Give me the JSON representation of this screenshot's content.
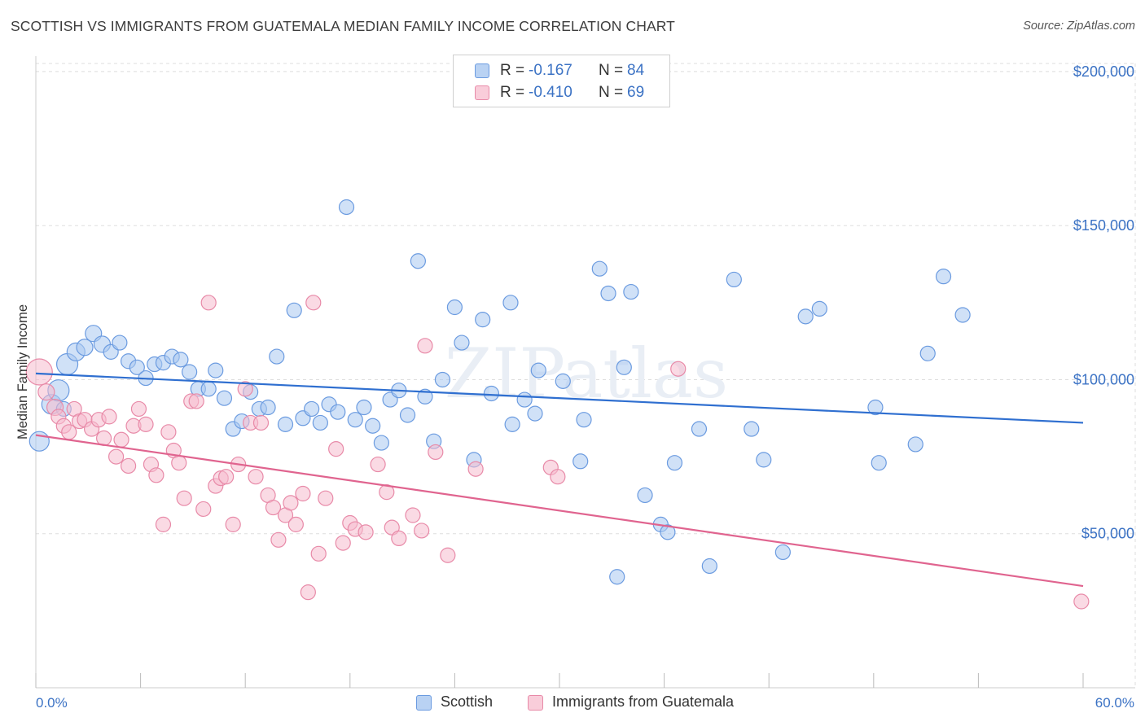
{
  "header": {
    "title": "SCOTTISH VS IMMIGRANTS FROM GUATEMALA MEDIAN FAMILY INCOME CORRELATION CHART",
    "source": "Source: ZipAtlas.com"
  },
  "legend_top": {
    "rows": [
      {
        "r_label": "R =",
        "r_value": "-0.167",
        "n_label": "N =",
        "n_value": "84"
      },
      {
        "r_label": "R =",
        "r_value": "-0.410",
        "n_label": "N =",
        "n_value": "69"
      }
    ]
  },
  "legend_bottom": {
    "items": [
      {
        "label": "Scottish"
      },
      {
        "label": "Immigrants from Guatemala"
      }
    ]
  },
  "colors": {
    "blue_fill": "#a9c8f0",
    "blue_stroke": "#6b9be0",
    "blue_line": "#2f6fd0",
    "pink_fill": "#f6bccd",
    "pink_stroke": "#e88aa8",
    "pink_line": "#e0648f",
    "axis_text": "#3b72c4",
    "grid": "#dddddd"
  },
  "chart_data": {
    "type": "scatter",
    "title": "SCOTTISH VS IMMIGRANTS FROM GUATEMALA MEDIAN FAMILY INCOME CORRELATION CHART",
    "xlabel": "",
    "ylabel": "Median Family Income",
    "xlim": [
      0,
      60
    ],
    "ylim": [
      0,
      205000
    ],
    "x_tick_labels": [
      "0.0%",
      "60.0%"
    ],
    "y_ticks": [
      50000,
      100000,
      150000,
      200000
    ],
    "y_tick_labels": [
      "$50,000",
      "$100,000",
      "$150,000",
      "$200,000"
    ],
    "grid": true,
    "legend_position": "bottom",
    "watermark": "ZIPatlas",
    "series": [
      {
        "name": "Scottish",
        "color": "#a9c8f0",
        "trend": {
          "x": [
            0,
            60
          ],
          "y": [
            102000,
            86000
          ]
        },
        "points": [
          [
            0.2,
            80000,
            12
          ],
          [
            0.9,
            92000,
            12
          ],
          [
            1.3,
            96500,
            13
          ],
          [
            1.8,
            105000,
            13
          ],
          [
            2.3,
            109000,
            11
          ],
          [
            2.8,
            110500,
            10
          ],
          [
            3.3,
            115000,
            10
          ],
          [
            3.8,
            111500,
            10
          ],
          [
            4.3,
            109000,
            9
          ],
          [
            4.8,
            112000,
            9
          ],
          [
            5.3,
            106000,
            9
          ],
          [
            5.8,
            104000,
            9
          ],
          [
            6.3,
            100500,
            9
          ],
          [
            6.8,
            105000,
            9
          ],
          [
            7.3,
            105500,
            9
          ],
          [
            7.8,
            107500,
            9
          ],
          [
            8.3,
            106500,
            9
          ],
          [
            8.8,
            102500,
            9
          ],
          [
            9.3,
            97000,
            9
          ],
          [
            9.9,
            97000,
            9
          ],
          [
            10.3,
            103000,
            9
          ],
          [
            10.8,
            94000,
            9
          ],
          [
            11.3,
            84000,
            9
          ],
          [
            11.8,
            86500,
            9
          ],
          [
            12.3,
            96000,
            9
          ],
          [
            12.8,
            90500,
            9
          ],
          [
            13.3,
            91000,
            9
          ],
          [
            13.8,
            107500,
            9
          ],
          [
            14.3,
            85500,
            9
          ],
          [
            14.8,
            122500,
            9
          ],
          [
            15.3,
            87500,
            9
          ],
          [
            15.8,
            90500,
            9
          ],
          [
            16.3,
            86000,
            9
          ],
          [
            16.8,
            92000,
            9
          ],
          [
            17.3,
            89500,
            9
          ],
          [
            17.8,
            156000,
            9
          ],
          [
            18.3,
            87000,
            9
          ],
          [
            18.8,
            91000,
            9
          ],
          [
            19.3,
            85000,
            9
          ],
          [
            19.8,
            79500,
            9
          ],
          [
            20.3,
            93500,
            9
          ],
          [
            20.8,
            96500,
            9
          ],
          [
            21.3,
            88500,
            9
          ],
          [
            21.9,
            138500,
            9
          ],
          [
            22.3,
            94500,
            9
          ],
          [
            22.8,
            80000,
            9
          ],
          [
            23.3,
            100000,
            9
          ],
          [
            24.0,
            123500,
            9
          ],
          [
            24.4,
            112000,
            9
          ],
          [
            25.1,
            74000,
            9
          ],
          [
            25.6,
            119500,
            9
          ],
          [
            26.1,
            95500,
            9
          ],
          [
            27.2,
            125000,
            9
          ],
          [
            27.3,
            85500,
            9
          ],
          [
            28.0,
            93500,
            9
          ],
          [
            28.6,
            89000,
            9
          ],
          [
            28.8,
            103000,
            9
          ],
          [
            30.2,
            99500,
            9
          ],
          [
            31.2,
            73500,
            9
          ],
          [
            31.4,
            87000,
            9
          ],
          [
            32.3,
            136000,
            9
          ],
          [
            32.8,
            128000,
            9
          ],
          [
            33.3,
            36000,
            9
          ],
          [
            33.7,
            104000,
            9
          ],
          [
            34.1,
            128500,
            9
          ],
          [
            34.9,
            62500,
            9
          ],
          [
            35.8,
            53000,
            9
          ],
          [
            36.2,
            50500,
            9
          ],
          [
            36.6,
            73000,
            9
          ],
          [
            38.0,
            84000,
            9
          ],
          [
            38.6,
            39500,
            9
          ],
          [
            40.0,
            132500,
            9
          ],
          [
            41.0,
            84000,
            9
          ],
          [
            41.7,
            74000,
            9
          ],
          [
            42.8,
            44000,
            9
          ],
          [
            44.1,
            120500,
            9
          ],
          [
            44.9,
            123000,
            9
          ],
          [
            48.1,
            91000,
            9
          ],
          [
            48.3,
            73000,
            9
          ],
          [
            50.4,
            79000,
            9
          ],
          [
            51.1,
            108500,
            9
          ],
          [
            52.0,
            133500,
            9
          ],
          [
            53.1,
            121000,
            9
          ],
          [
            1.6,
            90500,
            9
          ]
        ]
      },
      {
        "name": "Immigrants from Guatemala",
        "color": "#f6bccd",
        "trend": {
          "x": [
            0,
            60
          ],
          "y": [
            82000,
            33000
          ]
        },
        "points": [
          [
            0.2,
            102500,
            16
          ],
          [
            0.6,
            96000,
            10
          ],
          [
            1.1,
            91000,
            10
          ],
          [
            1.3,
            88000,
            9
          ],
          [
            1.6,
            85000,
            9
          ],
          [
            1.9,
            83000,
            9
          ],
          [
            2.2,
            90500,
            9
          ],
          [
            2.5,
            86500,
            9
          ],
          [
            2.8,
            87000,
            9
          ],
          [
            3.2,
            84000,
            9
          ],
          [
            3.6,
            87000,
            9
          ],
          [
            3.9,
            81000,
            9
          ],
          [
            4.2,
            88000,
            9
          ],
          [
            4.6,
            75000,
            9
          ],
          [
            4.9,
            80500,
            9
          ],
          [
            5.3,
            72000,
            9
          ],
          [
            5.6,
            85000,
            9
          ],
          [
            5.9,
            90500,
            9
          ],
          [
            6.3,
            85500,
            9
          ],
          [
            6.6,
            72500,
            9
          ],
          [
            6.9,
            69000,
            9
          ],
          [
            7.3,
            53000,
            9
          ],
          [
            7.6,
            83000,
            9
          ],
          [
            7.9,
            77000,
            9
          ],
          [
            8.2,
            73000,
            9
          ],
          [
            8.5,
            61500,
            9
          ],
          [
            8.9,
            93000,
            9
          ],
          [
            9.2,
            93000,
            9
          ],
          [
            9.6,
            58000,
            9
          ],
          [
            9.9,
            125000,
            9
          ],
          [
            10.3,
            65500,
            9
          ],
          [
            10.6,
            68000,
            9
          ],
          [
            10.9,
            68500,
            9
          ],
          [
            11.3,
            53000,
            9
          ],
          [
            11.6,
            72500,
            9
          ],
          [
            12.0,
            97000,
            9
          ],
          [
            12.3,
            86000,
            9
          ],
          [
            12.6,
            68500,
            9
          ],
          [
            12.9,
            86000,
            9
          ],
          [
            13.3,
            62500,
            9
          ],
          [
            13.6,
            58500,
            9
          ],
          [
            13.9,
            48000,
            9
          ],
          [
            14.3,
            56000,
            9
          ],
          [
            14.6,
            60000,
            9
          ],
          [
            14.9,
            53000,
            9
          ],
          [
            15.3,
            63000,
            9
          ],
          [
            15.6,
            31000,
            9
          ],
          [
            15.9,
            125000,
            9
          ],
          [
            16.2,
            43500,
            9
          ],
          [
            16.6,
            61500,
            9
          ],
          [
            17.2,
            77500,
            9
          ],
          [
            17.6,
            47000,
            9
          ],
          [
            18.0,
            53500,
            9
          ],
          [
            18.3,
            51500,
            9
          ],
          [
            18.9,
            50500,
            9
          ],
          [
            19.6,
            72500,
            9
          ],
          [
            20.1,
            63500,
            9
          ],
          [
            20.4,
            52000,
            9
          ],
          [
            20.8,
            48500,
            9
          ],
          [
            21.6,
            56000,
            9
          ],
          [
            22.1,
            51000,
            9
          ],
          [
            22.3,
            111000,
            9
          ],
          [
            22.9,
            76500,
            9
          ],
          [
            23.6,
            43000,
            9
          ],
          [
            25.2,
            71000,
            9
          ],
          [
            29.5,
            71500,
            9
          ],
          [
            29.9,
            68500,
            9
          ],
          [
            36.8,
            103500,
            9
          ],
          [
            59.9,
            28000,
            9
          ]
        ]
      }
    ]
  }
}
